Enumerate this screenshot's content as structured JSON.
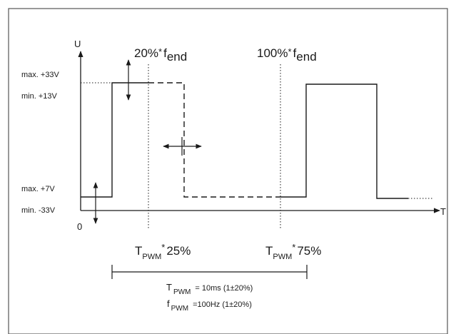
{
  "axis": {
    "y_label": "U",
    "x_label": "T",
    "origin_label": "0"
  },
  "voltage_levels": {
    "max_high": "max. +33V",
    "min_high": "min. +13V",
    "max_low": "max. +7V",
    "min_low": "min. -33V"
  },
  "frequency_markers": {
    "left": {
      "pct": "20%",
      "star": "*",
      "sym": "f",
      "sub": "end"
    },
    "right": {
      "pct": "100%",
      "star": "*",
      "sym": "f",
      "sub": "end"
    }
  },
  "period_markers": {
    "left": {
      "sym": "T",
      "sub": "PWM",
      "star": "*",
      "pct": "25%"
    },
    "right": {
      "sym": "T",
      "sub": "PWM",
      "star": "*",
      "pct": "75%"
    }
  },
  "specs": {
    "period": {
      "sym": "T",
      "sub": "PWM",
      "value": "= 10ms (1±20%)"
    },
    "frequency": {
      "sym": "f",
      "sub": "PWM",
      "value": "=100Hz (1±20%)"
    }
  },
  "colors": {
    "line": "#1a1a1a",
    "frame": "#555555",
    "background": "#ffffff"
  }
}
